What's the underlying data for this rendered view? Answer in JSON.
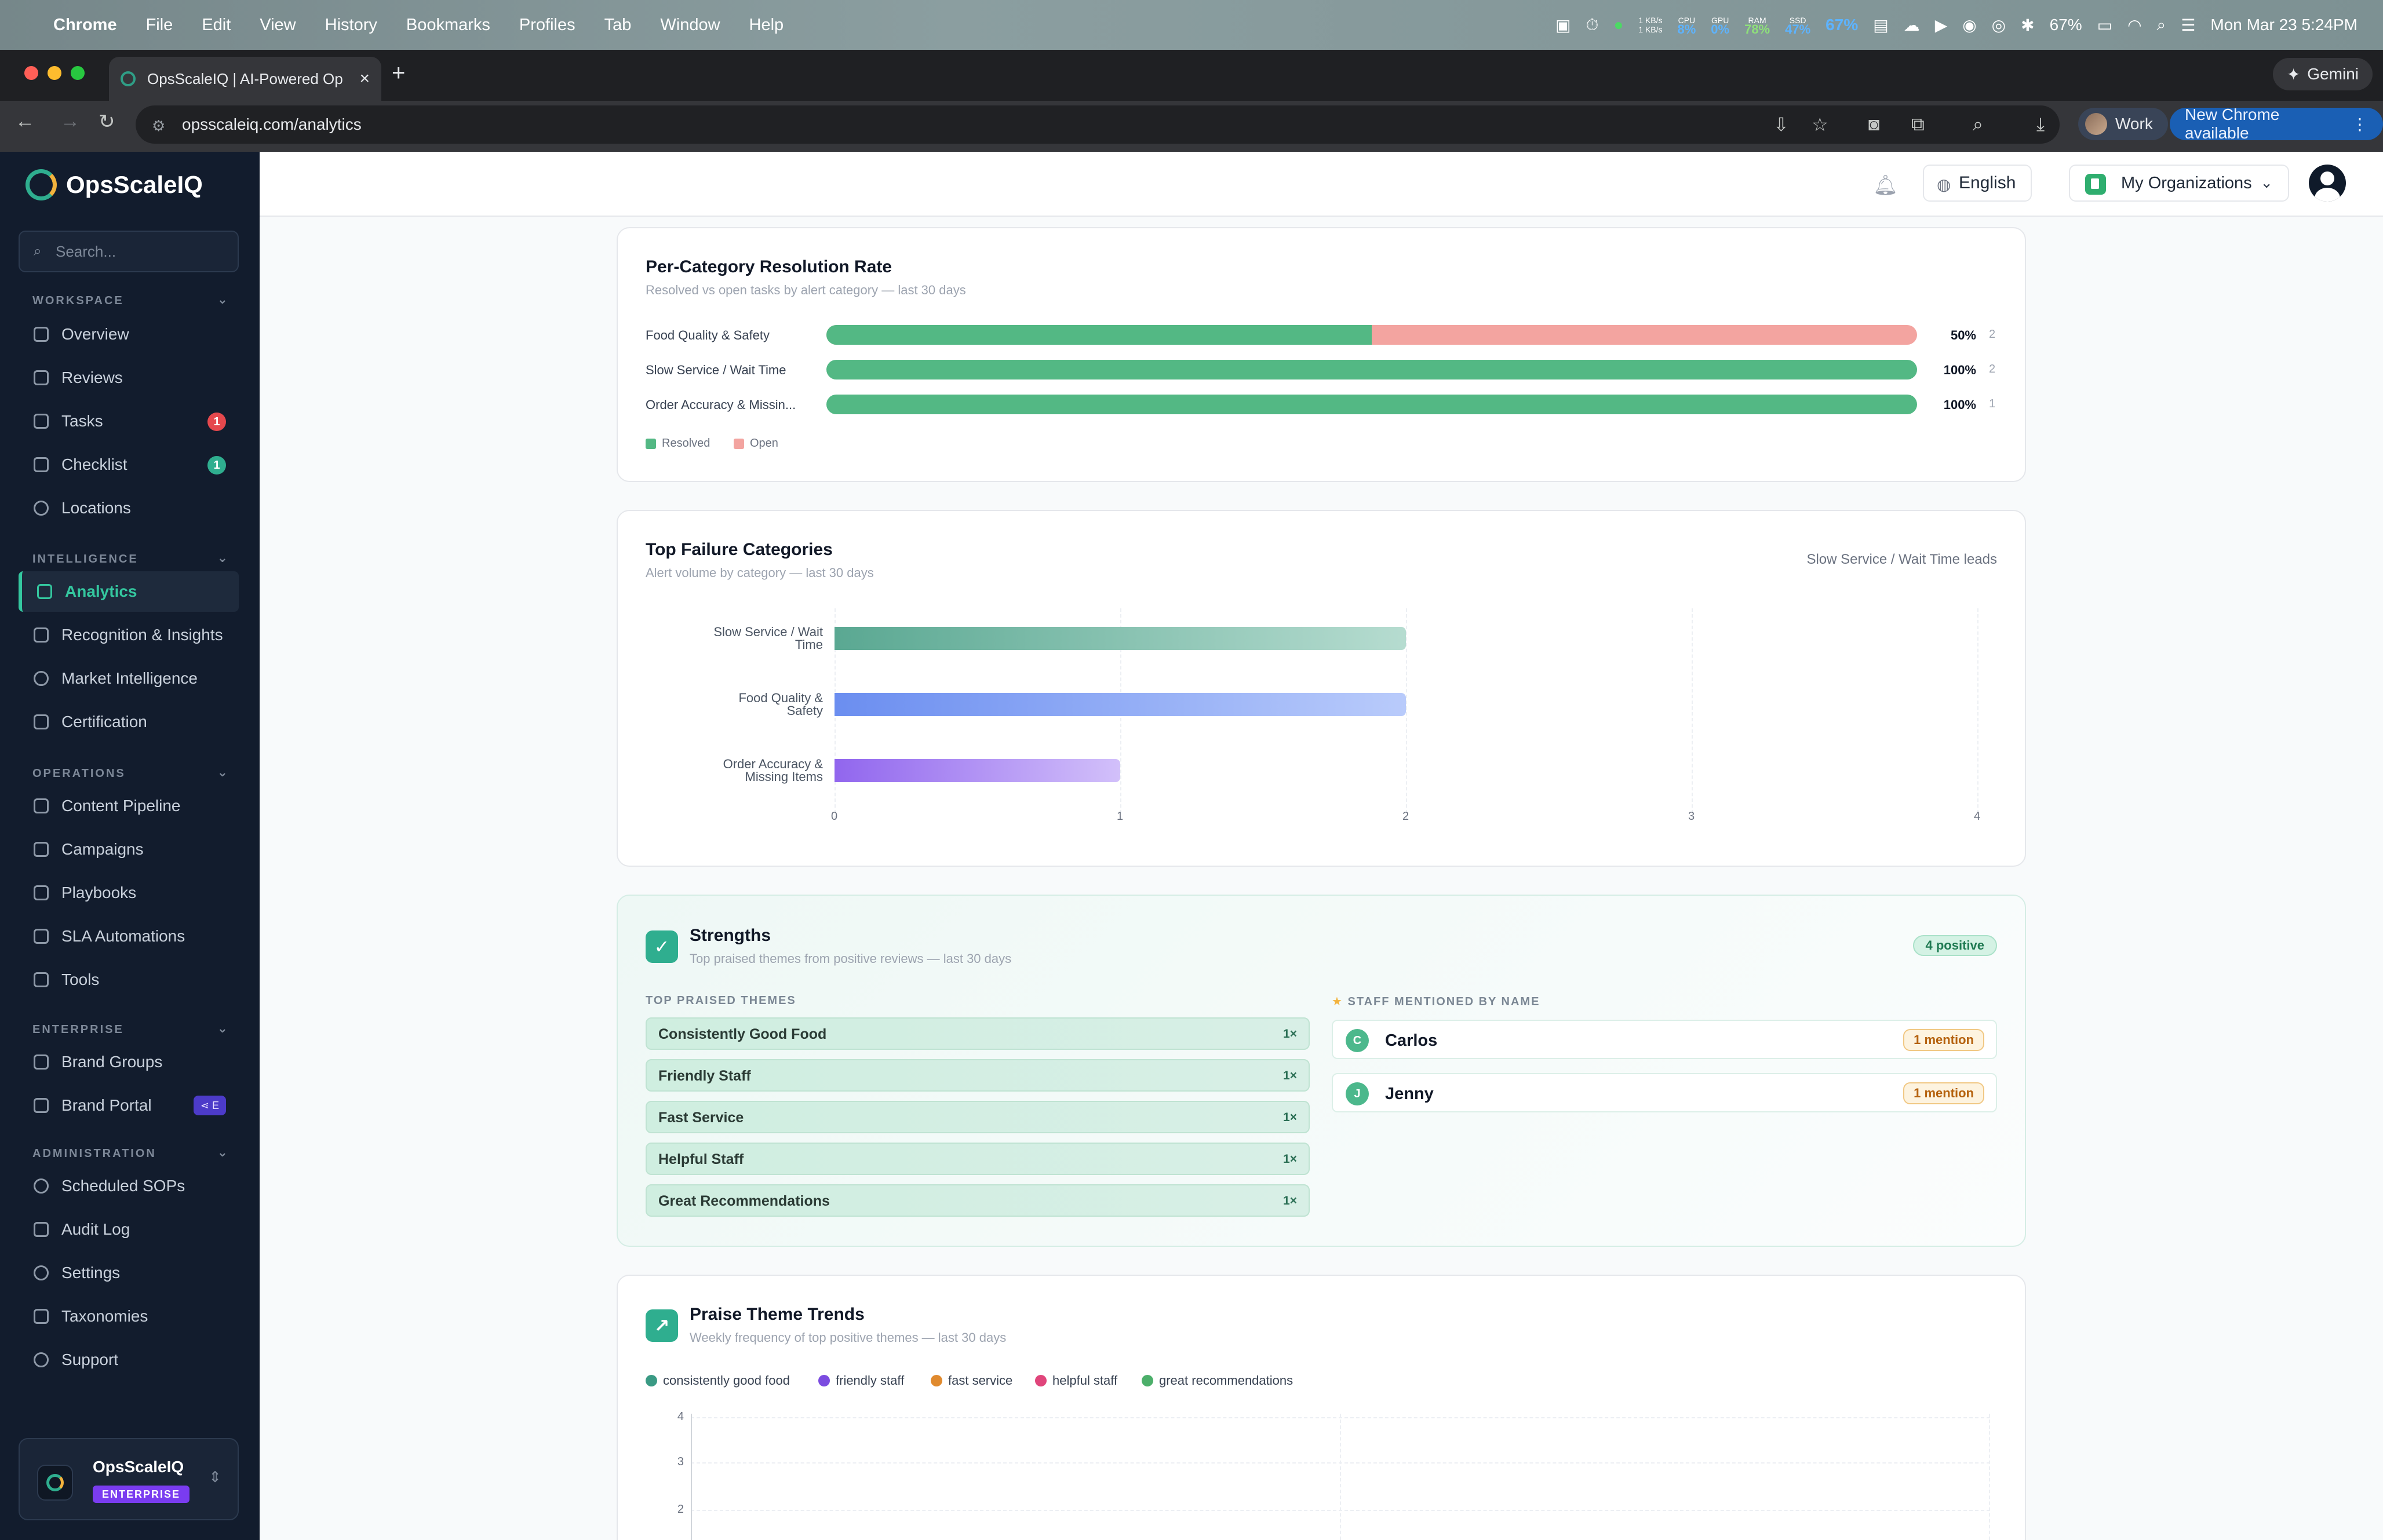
{
  "menubar": {
    "app": "Chrome",
    "items": [
      "File",
      "Edit",
      "View",
      "History",
      "Bookmarks",
      "Profiles",
      "Tab",
      "Window",
      "Help"
    ],
    "net_up": "1 KB/s",
    "net_down": "1 KB/s",
    "cpu_label": "CPU",
    "cpu_value": "8%",
    "gpu_label": "GPU",
    "gpu_value": "0%",
    "ram_label": "RAM",
    "ram_value": "78%",
    "ssd_label": "SSD",
    "ssd_value": "47%",
    "extra_pct": "67%",
    "battery": "67%",
    "datetime": "Mon Mar 23  5:24PM"
  },
  "browser": {
    "tab_title": "OpsScaleIQ | AI-Powered Op",
    "url": "opsscaleiq.com/analytics",
    "gemini_label": "Gemini",
    "profile_label": "Work",
    "update_label": "New Chrome available"
  },
  "sidebar": {
    "brand": "OpsScaleIQ",
    "search_placeholder": "Search...",
    "sections": {
      "workspace": "WORKSPACE",
      "intelligence": "INTELLIGENCE",
      "operations": "OPERATIONS",
      "enterprise": "ENTERPRISE",
      "administration": "ADMINISTRATION"
    },
    "items": {
      "overview": "Overview",
      "reviews": "Reviews",
      "tasks": "Tasks",
      "tasks_badge": "1",
      "checklist": "Checklist",
      "checklist_badge": "1",
      "locations": "Locations",
      "analytics": "Analytics",
      "recognition": "Recognition & Insights",
      "market": "Market Intelligence",
      "certification": "Certification",
      "content_pipeline": "Content Pipeline",
      "campaigns": "Campaigns",
      "playbooks": "Playbooks",
      "sla": "SLA Automations",
      "tools": "Tools",
      "brand_groups": "Brand Groups",
      "brand_portal": "Brand Portal",
      "brand_portal_badge": "E",
      "scheduled_sops": "Scheduled SOPs",
      "audit_log": "Audit Log",
      "settings": "Settings",
      "taxonomies": "Taxonomies",
      "support": "Support"
    },
    "org": {
      "name": "OpsScaleIQ",
      "tier": "ENTERPRISE"
    }
  },
  "header": {
    "language": "English",
    "org_selector": "My Organizations"
  },
  "resolution": {
    "title": "Per-Category Resolution Rate",
    "subtitle": "Resolved vs open tasks by alert category — last 30 days",
    "rows": [
      {
        "label": "Food Quality & Safety",
        "resolved_pct": 50,
        "pct_label": "50%",
        "count": "2"
      },
      {
        "label": "Slow Service / Wait Time",
        "resolved_pct": 100,
        "pct_label": "100%",
        "count": "2"
      },
      {
        "label": "Order Accuracy & Missin...",
        "resolved_pct": 100,
        "pct_label": "100%",
        "count": "1"
      }
    ],
    "legend_resolved": "Resolved",
    "legend_open": "Open",
    "color_resolved": "#53b884",
    "color_open": "#f3a4a0"
  },
  "failures": {
    "title": "Top Failure Categories",
    "subtitle": "Alert volume by category — last 30 days",
    "leader": "Slow Service / Wait Time leads"
  },
  "chart_data": {
    "type": "bar",
    "orientation": "horizontal",
    "categories": [
      "Slow Service / Wait Time",
      "Food Quality & Safety",
      "Order Accuracy & Missing Items"
    ],
    "category_lines": [
      [
        "Slow Service / Wait",
        "Time"
      ],
      [
        "Food Quality &",
        "Safety"
      ],
      [
        "Order Accuracy &",
        "Missing Items"
      ]
    ],
    "values": [
      2,
      2,
      1
    ],
    "xlim": [
      0,
      4
    ],
    "xticks": [
      "0",
      "1",
      "2",
      "3",
      "4"
    ],
    "colors": [
      [
        "#5aa892",
        "#b6dcd0"
      ],
      [
        "#6b8ef0",
        "#b9cbfb"
      ],
      [
        "#9166ee",
        "#d2c0fa"
      ]
    ],
    "grid": true
  },
  "strengths": {
    "title": "Strengths",
    "subtitle": "Top praised themes from positive reviews — last 30 days",
    "badge": "4 positive",
    "themes_heading": "TOP PRAISED THEMES",
    "staff_heading": "STAFF MENTIONED BY NAME",
    "themes": [
      {
        "name": "Consistently Good Food",
        "count": "1×"
      },
      {
        "name": "Friendly Staff",
        "count": "1×"
      },
      {
        "name": "Fast Service",
        "count": "1×"
      },
      {
        "name": "Helpful Staff",
        "count": "1×"
      },
      {
        "name": "Great Recommendations",
        "count": "1×"
      }
    ],
    "staff": [
      {
        "initial": "C",
        "name": "Carlos",
        "mentions": "1 mention"
      },
      {
        "initial": "J",
        "name": "Jenny",
        "mentions": "1 mention"
      }
    ]
  },
  "praise": {
    "title": "Praise Theme Trends",
    "subtitle": "Weekly frequency of top positive themes — last 30 days",
    "legend": [
      {
        "name": "consistently good food",
        "color": "#3a9a84"
      },
      {
        "name": "friendly staff",
        "color": "#7b4ce0"
      },
      {
        "name": "fast service",
        "color": "#e08a2e"
      },
      {
        "name": "helpful staff",
        "color": "#e0457b"
      },
      {
        "name": "great recommendations",
        "color": "#4caf6a"
      }
    ],
    "y_ticks": [
      "4",
      "3",
      "2"
    ]
  }
}
